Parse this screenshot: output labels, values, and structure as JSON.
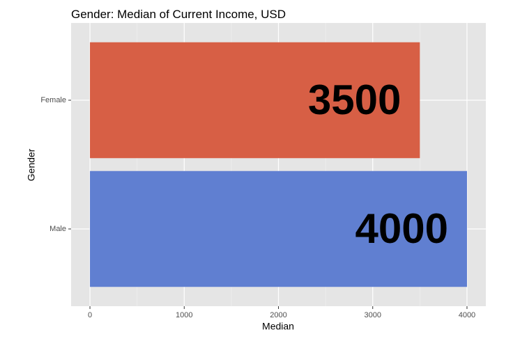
{
  "chart_data": {
    "type": "barh",
    "title": "Gender: Median of Current Income, USD",
    "x_label": "Median",
    "y_label": "Gender",
    "categories": [
      "Female",
      "Male"
    ],
    "values": [
      3500,
      4000
    ],
    "colors": [
      "#d65a3f",
      "#5b7bcf"
    ],
    "xlim": [
      -200,
      4200
    ],
    "xticks": [
      0,
      1000,
      2000,
      3000,
      4000
    ],
    "grid": true,
    "value_labels_shown": true
  }
}
